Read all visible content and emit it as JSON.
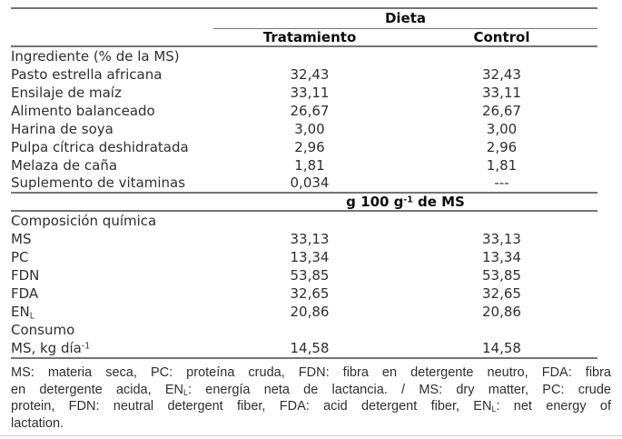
{
  "table": {
    "group_header": "Dieta",
    "col_headers": [
      "Tratamiento",
      "Control"
    ],
    "sections": [
      {
        "header": "Ingrediente (% de la MS)",
        "rows": [
          {
            "label": [
              {
                "t": "Pasto estrella africana"
              }
            ],
            "treatment": "32,43",
            "control": "32,43"
          },
          {
            "label": [
              {
                "t": "Ensilaje de maíz"
              }
            ],
            "treatment": "33,11",
            "control": "33,11"
          },
          {
            "label": [
              {
                "t": "Alimento balanceado"
              }
            ],
            "treatment": "26,67",
            "control": "26,67"
          },
          {
            "label": [
              {
                "t": "Harina de soya"
              }
            ],
            "treatment": "3,00",
            "control": "3,00"
          },
          {
            "label": [
              {
                "t": "Pulpa cítrica deshidratada"
              }
            ],
            "treatment": "2,96",
            "control": "2,96"
          },
          {
            "label": [
              {
                "t": "Melaza de caña"
              }
            ],
            "treatment": "1,81",
            "control": "1,81"
          },
          {
            "label": [
              {
                "t": "Suplemento de vitaminas"
              }
            ],
            "treatment": "0,034",
            "control": "---"
          }
        ]
      },
      {
        "band": [
          {
            "t": "g 100 g"
          },
          {
            "sup": "-1"
          },
          {
            "t": " de MS"
          }
        ],
        "header": "Composición química",
        "rows": [
          {
            "label": [
              {
                "t": "MS"
              }
            ],
            "treatment": "33,13",
            "control": "33,13"
          },
          {
            "label": [
              {
                "t": "PC"
              }
            ],
            "treatment": "13,34",
            "control": "13,34"
          },
          {
            "label": [
              {
                "t": "FDN"
              }
            ],
            "treatment": "53,85",
            "control": "53,85"
          },
          {
            "label": [
              {
                "t": "FDA"
              }
            ],
            "treatment": "32,65",
            "control": "32,65"
          },
          {
            "label": [
              {
                "t": "EN"
              },
              {
                "sub": "L"
              }
            ],
            "treatment": "20,86",
            "control": "20,86"
          }
        ]
      },
      {
        "header": "Consumo",
        "rows": [
          {
            "label": [
              {
                "t": "MS, kg día"
              },
              {
                "sup": "-1"
              }
            ],
            "treatment": "14,58",
            "control": "14,58"
          }
        ]
      }
    ]
  },
  "footnote": {
    "lines": [
      {
        "justify": true,
        "segments": [
          {
            "t": "MS: materia seca, PC: proteína cruda, FDN: fibra en detergente neutro, FDA: fibra"
          }
        ]
      },
      {
        "justify": true,
        "segments": [
          {
            "t": "en detergente acida, EN"
          },
          {
            "sub": "L"
          },
          {
            "t": ": energía neta de lactancia. / MS: dry matter, PC: crude"
          }
        ]
      },
      {
        "justify": true,
        "segments": [
          {
            "t": "protein, FDN: neutral detergent fiber, FDA: acid detergent fiber, EN"
          },
          {
            "sub": "L"
          },
          {
            "t": ": net energy of"
          }
        ]
      },
      {
        "justify": false,
        "segments": [
          {
            "t": "lactation."
          }
        ]
      }
    ]
  },
  "colors": {
    "text": "#2f2f2f",
    "bold_text": "#0d0d0d",
    "rule": "#757575",
    "faint_rule": "#cbcbcb",
    "background": "#ffffff"
  }
}
